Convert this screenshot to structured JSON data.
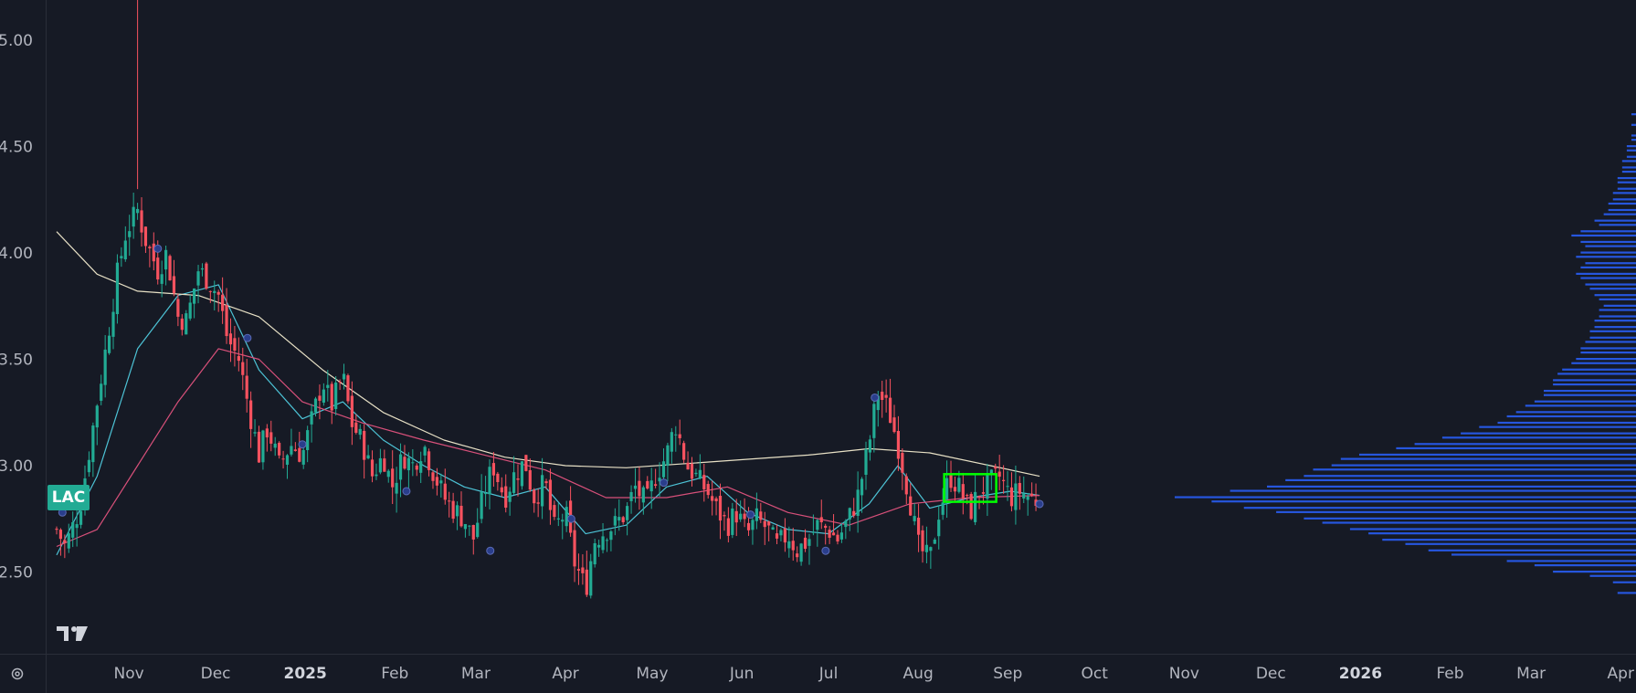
{
  "ticker": "LAC",
  "colors": {
    "background": "#161a25",
    "up_candle": "#22ab94",
    "down_candle": "#f7525f",
    "sma_short": "#4dc3d6",
    "sma_mid": "#d8507a",
    "sma_long": "#e8e1c6",
    "volume_profile": "#2962ff",
    "highlight_box": "#00ff00",
    "earnings_marker": "#2a3e8c"
  },
  "icons": [
    "tradingview-logo-icon",
    "settings-icon"
  ],
  "chart_data": {
    "type": "candlestick",
    "title": "",
    "ylim": [
      2.18,
      5.19
    ],
    "y_ticks": [
      "5.00",
      "4.50",
      "4.00",
      "3.50",
      "3.00",
      "2.50"
    ],
    "x_ticks": [
      "Nov",
      "Dec",
      "2025",
      "Feb",
      "Mar",
      "Apr",
      "May",
      "Jun",
      "Jul",
      "Aug",
      "Sep",
      "Oct",
      "Nov",
      "Dec",
      "2026",
      "Feb",
      "Mar",
      "Apr"
    ],
    "bold_x_ticks": [
      "2025",
      "2026"
    ],
    "price_path": [
      [
        "2024-10-07",
        2.7
      ],
      [
        "2024-10-10",
        2.62
      ],
      [
        "2024-10-15",
        2.8
      ],
      [
        "2024-10-18",
        3.05
      ],
      [
        "2024-10-21",
        3.3
      ],
      [
        "2024-10-24",
        3.55
      ],
      [
        "2024-10-28",
        3.9
      ],
      [
        "2024-10-31",
        4.1
      ],
      [
        "2024-11-04",
        4.2
      ],
      [
        "2024-11-07",
        4.05
      ],
      [
        "2024-11-11",
        3.92
      ],
      [
        "2024-11-14",
        4.0
      ],
      [
        "2024-11-18",
        3.7
      ],
      [
        "2024-11-21",
        3.68
      ],
      [
        "2024-11-25",
        3.92
      ],
      [
        "2024-11-28",
        3.88
      ],
      [
        "2024-12-02",
        3.8
      ],
      [
        "2024-12-05",
        3.6
      ],
      [
        "2024-12-09",
        3.5
      ],
      [
        "2024-12-12",
        3.3
      ],
      [
        "2024-12-16",
        3.05
      ],
      [
        "2024-12-19",
        3.18
      ],
      [
        "2024-12-23",
        3.0
      ],
      [
        "2024-12-27",
        3.1
      ],
      [
        "2024-12-31",
        3.05
      ],
      [
        "2025-01-03",
        3.2
      ],
      [
        "2025-01-07",
        3.4
      ],
      [
        "2025-01-10",
        3.28
      ],
      [
        "2025-01-14",
        3.42
      ],
      [
        "2025-01-17",
        3.2
      ],
      [
        "2025-01-21",
        3.1
      ],
      [
        "2025-01-24",
        2.95
      ],
      [
        "2025-01-28",
        3.05
      ],
      [
        "2025-01-31",
        2.9
      ],
      [
        "2025-02-04",
        3.05
      ],
      [
        "2025-02-07",
        3.0
      ],
      [
        "2025-02-11",
        3.1
      ],
      [
        "2025-02-14",
        2.98
      ],
      [
        "2025-02-18",
        2.85
      ],
      [
        "2025-02-21",
        2.8
      ],
      [
        "2025-02-25",
        2.75
      ],
      [
        "2025-02-28",
        2.65
      ],
      [
        "2025-03-04",
        2.88
      ],
      [
        "2025-03-07",
        3.0
      ],
      [
        "2025-03-11",
        2.85
      ],
      [
        "2025-03-14",
        2.95
      ],
      [
        "2025-03-18",
        3.02
      ],
      [
        "2025-03-21",
        2.85
      ],
      [
        "2025-03-25",
        2.92
      ],
      [
        "2025-03-28",
        2.7
      ],
      [
        "2025-04-01",
        2.78
      ],
      [
        "2025-04-04",
        2.55
      ],
      [
        "2025-04-08",
        2.42
      ],
      [
        "2025-04-11",
        2.65
      ],
      [
        "2025-04-15",
        2.7
      ],
      [
        "2025-04-18",
        2.72
      ],
      [
        "2025-04-22",
        2.78
      ],
      [
        "2025-04-25",
        2.9
      ],
      [
        "2025-04-29",
        2.82
      ],
      [
        "2025-05-02",
        2.95
      ],
      [
        "2025-05-06",
        3.05
      ],
      [
        "2025-05-09",
        3.2
      ],
      [
        "2025-05-13",
        3.0
      ],
      [
        "2025-05-16",
        2.95
      ],
      [
        "2025-05-20",
        2.88
      ],
      [
        "2025-05-23",
        2.8
      ],
      [
        "2025-05-27",
        2.72
      ],
      [
        "2025-05-30",
        2.78
      ],
      [
        "2025-06-03",
        2.68
      ],
      [
        "2025-06-06",
        2.75
      ],
      [
        "2025-06-10",
        2.7
      ],
      [
        "2025-06-13",
        2.62
      ],
      [
        "2025-06-17",
        2.68
      ],
      [
        "2025-06-20",
        2.6
      ],
      [
        "2025-06-24",
        2.65
      ],
      [
        "2025-06-27",
        2.72
      ],
      [
        "2025-07-01",
        2.7
      ],
      [
        "2025-07-04",
        2.65
      ],
      [
        "2025-07-08",
        2.75
      ],
      [
        "2025-07-11",
        2.85
      ],
      [
        "2025-07-15",
        3.1
      ],
      [
        "2025-07-18",
        3.35
      ],
      [
        "2025-07-22",
        3.25
      ],
      [
        "2025-07-25",
        3.1
      ],
      [
        "2025-07-29",
        2.85
      ],
      [
        "2025-08-01",
        2.62
      ],
      [
        "2025-08-05",
        2.55
      ],
      [
        "2025-08-08",
        2.78
      ],
      [
        "2025-08-12",
        2.95
      ],
      [
        "2025-08-15",
        2.9
      ],
      [
        "2025-08-19",
        2.78
      ],
      [
        "2025-08-22",
        2.88
      ],
      [
        "2025-08-26",
        2.92
      ],
      [
        "2025-08-29",
        2.95
      ],
      [
        "2025-09-02",
        2.85
      ],
      [
        "2025-09-05",
        2.88
      ],
      [
        "2025-09-09",
        2.85
      ],
      [
        "2025-09-12",
        2.83
      ]
    ],
    "spikes": [
      [
        "2024-11-04",
        5.19
      ]
    ],
    "moving_averages": [
      {
        "color_key": "sma_short",
        "points": [
          [
            "2024-10-07",
            2.58
          ],
          [
            "2024-10-21",
            2.95
          ],
          [
            "2024-11-04",
            3.55
          ],
          [
            "2024-11-18",
            3.8
          ],
          [
            "2024-12-02",
            3.85
          ],
          [
            "2024-12-16",
            3.45
          ],
          [
            "2024-12-31",
            3.22
          ],
          [
            "2025-01-14",
            3.3
          ],
          [
            "2025-01-28",
            3.12
          ],
          [
            "2025-02-11",
            3.0
          ],
          [
            "2025-02-25",
            2.9
          ],
          [
            "2025-03-11",
            2.85
          ],
          [
            "2025-03-25",
            2.9
          ],
          [
            "2025-04-08",
            2.68
          ],
          [
            "2025-04-22",
            2.72
          ],
          [
            "2025-05-06",
            2.9
          ],
          [
            "2025-05-20",
            2.95
          ],
          [
            "2025-06-03",
            2.78
          ],
          [
            "2025-06-17",
            2.7
          ],
          [
            "2025-07-01",
            2.68
          ],
          [
            "2025-07-15",
            2.82
          ],
          [
            "2025-07-25",
            3.0
          ],
          [
            "2025-08-05",
            2.8
          ],
          [
            "2025-08-19",
            2.85
          ],
          [
            "2025-09-02",
            2.88
          ],
          [
            "2025-09-12",
            2.86
          ]
        ]
      },
      {
        "color_key": "sma_mid",
        "points": [
          [
            "2024-10-07",
            2.62
          ],
          [
            "2024-10-21",
            2.7
          ],
          [
            "2024-11-04",
            3.0
          ],
          [
            "2024-11-18",
            3.3
          ],
          [
            "2024-12-02",
            3.55
          ],
          [
            "2024-12-16",
            3.5
          ],
          [
            "2024-12-31",
            3.3
          ],
          [
            "2025-01-21",
            3.2
          ],
          [
            "2025-02-11",
            3.12
          ],
          [
            "2025-03-04",
            3.05
          ],
          [
            "2025-03-25",
            2.98
          ],
          [
            "2025-04-15",
            2.85
          ],
          [
            "2025-05-06",
            2.85
          ],
          [
            "2025-05-27",
            2.9
          ],
          [
            "2025-06-17",
            2.78
          ],
          [
            "2025-07-08",
            2.72
          ],
          [
            "2025-07-29",
            2.82
          ],
          [
            "2025-08-19",
            2.85
          ],
          [
            "2025-09-12",
            2.86
          ]
        ]
      },
      {
        "color_key": "sma_long",
        "points": [
          [
            "2024-10-07",
            4.1
          ],
          [
            "2024-10-21",
            3.9
          ],
          [
            "2024-11-04",
            3.82
          ],
          [
            "2024-11-25",
            3.8
          ],
          [
            "2024-12-16",
            3.7
          ],
          [
            "2025-01-07",
            3.45
          ],
          [
            "2025-01-28",
            3.25
          ],
          [
            "2025-02-18",
            3.12
          ],
          [
            "2025-03-11",
            3.04
          ],
          [
            "2025-04-01",
            3.0
          ],
          [
            "2025-04-22",
            2.99
          ],
          [
            "2025-05-13",
            3.01
          ],
          [
            "2025-06-03",
            3.03
          ],
          [
            "2025-06-24",
            3.05
          ],
          [
            "2025-07-15",
            3.08
          ],
          [
            "2025-08-05",
            3.06
          ],
          [
            "2025-08-26",
            3.0
          ],
          [
            "2025-09-12",
            2.95
          ]
        ]
      }
    ],
    "earnings_markers": [
      [
        "2024-10-09",
        2.78
      ],
      [
        "2024-11-11",
        4.02
      ],
      [
        "2024-12-12",
        3.6
      ],
      [
        "2024-12-31",
        3.1
      ],
      [
        "2025-02-05",
        2.88
      ],
      [
        "2025-03-06",
        2.6
      ],
      [
        "2025-04-03",
        2.75
      ],
      [
        "2025-05-05",
        2.92
      ],
      [
        "2025-06-04",
        2.77
      ],
      [
        "2025-06-30",
        2.6
      ],
      [
        "2025-07-17",
        3.32
      ],
      [
        "2025-09-12",
        2.82
      ]
    ],
    "highlight_box": {
      "x0": "2025-08-10",
      "x1": "2025-08-28",
      "y0": 2.83,
      "y1": 2.96
    },
    "volume_profile": {
      "price_low": 2.4,
      "price_high": 4.65,
      "levels": [
        [
          2.4,
          0.04
        ],
        [
          2.45,
          0.05
        ],
        [
          2.48,
          0.1
        ],
        [
          2.5,
          0.18
        ],
        [
          2.53,
          0.22
        ],
        [
          2.55,
          0.28
        ],
        [
          2.58,
          0.4
        ],
        [
          2.6,
          0.45
        ],
        [
          2.63,
          0.5
        ],
        [
          2.65,
          0.55
        ],
        [
          2.68,
          0.58
        ],
        [
          2.7,
          0.62
        ],
        [
          2.73,
          0.68
        ],
        [
          2.75,
          0.72
        ],
        [
          2.78,
          0.78
        ],
        [
          2.8,
          0.85
        ],
        [
          2.83,
          0.92
        ],
        [
          2.85,
          1.0
        ],
        [
          2.88,
          0.88
        ],
        [
          2.9,
          0.8
        ],
        [
          2.93,
          0.76
        ],
        [
          2.95,
          0.72
        ],
        [
          2.98,
          0.7
        ],
        [
          3.0,
          0.66
        ],
        [
          3.03,
          0.64
        ],
        [
          3.05,
          0.6
        ],
        [
          3.08,
          0.52
        ],
        [
          3.1,
          0.48
        ],
        [
          3.13,
          0.42
        ],
        [
          3.15,
          0.38
        ],
        [
          3.18,
          0.34
        ],
        [
          3.2,
          0.3
        ],
        [
          3.23,
          0.28
        ],
        [
          3.25,
          0.26
        ],
        [
          3.28,
          0.24
        ],
        [
          3.3,
          0.22
        ],
        [
          3.33,
          0.2
        ],
        [
          3.35,
          0.2
        ],
        [
          3.38,
          0.18
        ],
        [
          3.4,
          0.18
        ],
        [
          3.43,
          0.17
        ],
        [
          3.45,
          0.16
        ],
        [
          3.48,
          0.14
        ],
        [
          3.5,
          0.13
        ],
        [
          3.53,
          0.12
        ],
        [
          3.55,
          0.12
        ],
        [
          3.58,
          0.11
        ],
        [
          3.6,
          0.1
        ],
        [
          3.63,
          0.1
        ],
        [
          3.65,
          0.09
        ],
        [
          3.68,
          0.09
        ],
        [
          3.7,
          0.08
        ],
        [
          3.73,
          0.08
        ],
        [
          3.75,
          0.07
        ],
        [
          3.78,
          0.08
        ],
        [
          3.8,
          0.09
        ],
        [
          3.83,
          0.1
        ],
        [
          3.85,
          0.11
        ],
        [
          3.88,
          0.12
        ],
        [
          3.9,
          0.13
        ],
        [
          3.93,
          0.12
        ],
        [
          3.95,
          0.11
        ],
        [
          3.98,
          0.13
        ],
        [
          4.0,
          0.12
        ],
        [
          4.03,
          0.11
        ],
        [
          4.05,
          0.12
        ],
        [
          4.08,
          0.14
        ],
        [
          4.1,
          0.12
        ],
        [
          4.13,
          0.08
        ],
        [
          4.15,
          0.09
        ],
        [
          4.18,
          0.07
        ],
        [
          4.2,
          0.06
        ],
        [
          4.23,
          0.06
        ],
        [
          4.25,
          0.05
        ],
        [
          4.28,
          0.05
        ],
        [
          4.3,
          0.04
        ],
        [
          4.33,
          0.04
        ],
        [
          4.35,
          0.04
        ],
        [
          4.38,
          0.03
        ],
        [
          4.4,
          0.03
        ],
        [
          4.43,
          0.03
        ],
        [
          4.45,
          0.02
        ],
        [
          4.48,
          0.02
        ],
        [
          4.5,
          0.02
        ],
        [
          4.53,
          0.01
        ],
        [
          4.55,
          0.01
        ],
        [
          4.6,
          0.01
        ],
        [
          4.65,
          0.01
        ]
      ]
    },
    "grid": false,
    "legend": "none"
  }
}
